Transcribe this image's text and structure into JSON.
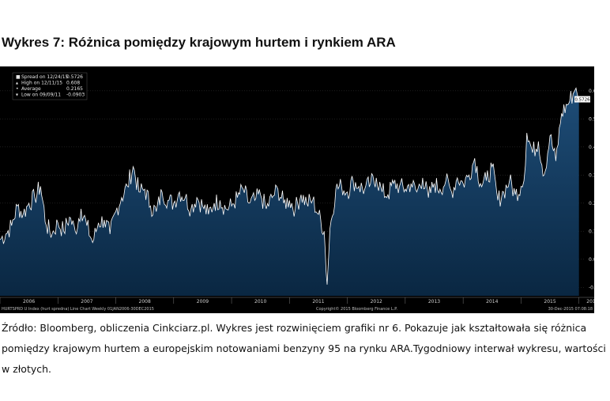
{
  "title": "Wykres 7: Różnica pomiędzy krajowym hurtem i rynkiem ARA",
  "legend": [
    {
      "label": "Spread on 12/24/15",
      "value": "0.5726"
    },
    {
      "label": "High on 12/11/15",
      "value": "0.608"
    },
    {
      "label": "Average",
      "value": "0.2165"
    },
    {
      "label": "Low on 09/09/11",
      "value": "-0.0903"
    }
  ],
  "last_value_label": "0.5726",
  "footer_left": "HURTSPRD U Index (hurt spredna) Line Chart Weekly 01JAN2006-30DEC2015",
  "footer_center": "Copyright© 2015 Bloomberg Finance L.P.",
  "footer_right": "30-Dec-2015 07:08:18",
  "caption_lines": [
    "Źródło: Bloomberg, obliczenia Cinkciarz.pl. Wykres jest rozwinięciem grafiki nr 6. Pokazuje jak kształtowała się różnica",
    "pomiędzy krajowym hurtem a europejskim notowaniami benzyny 95 na rynku ARA.Tygodniowy interwał wykresu, wartości",
    "w złotych."
  ],
  "colors": {
    "background": "#000000",
    "area_top": "#1e4d78",
    "area_bottom": "#0a2742",
    "line": "#ffffff",
    "grid": "#3a3a3a"
  },
  "chart_data": {
    "type": "area",
    "title": "",
    "xlabel": "",
    "ylabel": "",
    "x_ticks": [
      "2006",
      "2007",
      "2008",
      "2009",
      "2010",
      "2011",
      "2012",
      "2013",
      "2014",
      "2015",
      "201"
    ],
    "y_ticks": [
      -0.1,
      0.0,
      0.1,
      0.2,
      0.3,
      0.4,
      0.5,
      0.6
    ],
    "y_tick_labels": [
      "-0.10",
      "0.00",
      "0.10",
      "0.20",
      "0.30",
      "0.40",
      "0.50",
      "0.60"
    ],
    "ylim": [
      -0.13,
      0.67
    ],
    "xlim": [
      2006.0,
      2016.1
    ],
    "grid": true,
    "legend_position": "top-left",
    "series": [
      {
        "name": "Spread",
        "x": [
          2006.0,
          2006.1,
          2006.2,
          2006.3,
          2006.4,
          2006.5,
          2006.6,
          2006.7,
          2006.8,
          2006.9,
          2007.0,
          2007.1,
          2007.2,
          2007.3,
          2007.4,
          2007.5,
          2007.6,
          2007.7,
          2007.8,
          2007.9,
          2008.0,
          2008.1,
          2008.2,
          2008.3,
          2008.4,
          2008.5,
          2008.6,
          2008.7,
          2008.8,
          2008.9,
          2009.0,
          2009.1,
          2009.2,
          2009.3,
          2009.4,
          2009.5,
          2009.6,
          2009.7,
          2009.8,
          2009.9,
          2010.0,
          2010.1,
          2010.2,
          2010.3,
          2010.4,
          2010.5,
          2010.6,
          2010.7,
          2010.8,
          2010.9,
          2011.0,
          2011.1,
          2011.2,
          2011.3,
          2011.4,
          2011.5,
          2011.6,
          2011.65,
          2011.7,
          2011.8,
          2011.9,
          2012.0,
          2012.1,
          2012.2,
          2012.3,
          2012.4,
          2012.5,
          2012.6,
          2012.7,
          2012.8,
          2012.9,
          2013.0,
          2013.1,
          2013.2,
          2013.3,
          2013.4,
          2013.5,
          2013.6,
          2013.7,
          2013.8,
          2013.9,
          2014.0,
          2014.1,
          2014.2,
          2014.3,
          2014.4,
          2014.5,
          2014.6,
          2014.7,
          2014.8,
          2014.9,
          2015.0,
          2015.05,
          2015.1,
          2015.2,
          2015.3,
          2015.4,
          2015.5,
          2015.6,
          2015.7,
          2015.8,
          2015.9,
          2015.95,
          2016.0
        ],
        "y": [
          0.07,
          0.09,
          0.12,
          0.19,
          0.16,
          0.2,
          0.22,
          0.26,
          0.12,
          0.09,
          0.13,
          0.1,
          0.15,
          0.1,
          0.18,
          0.12,
          0.06,
          0.13,
          0.14,
          0.09,
          0.17,
          0.22,
          0.26,
          0.33,
          0.24,
          0.25,
          0.19,
          0.17,
          0.24,
          0.21,
          0.2,
          0.24,
          0.22,
          0.18,
          0.22,
          0.19,
          0.16,
          0.2,
          0.21,
          0.18,
          0.19,
          0.22,
          0.25,
          0.2,
          0.21,
          0.23,
          0.18,
          0.22,
          0.25,
          0.2,
          0.21,
          0.18,
          0.23,
          0.2,
          0.21,
          0.16,
          0.1,
          -0.09,
          0.11,
          0.25,
          0.26,
          0.24,
          0.28,
          0.26,
          0.25,
          0.27,
          0.29,
          0.24,
          0.23,
          0.27,
          0.26,
          0.25,
          0.27,
          0.24,
          0.29,
          0.22,
          0.27,
          0.25,
          0.28,
          0.24,
          0.29,
          0.27,
          0.3,
          0.36,
          0.27,
          0.28,
          0.33,
          0.21,
          0.24,
          0.28,
          0.23,
          0.26,
          0.28,
          0.45,
          0.38,
          0.42,
          0.3,
          0.44,
          0.35,
          0.52,
          0.55,
          0.59,
          0.61,
          0.57
        ]
      }
    ]
  }
}
